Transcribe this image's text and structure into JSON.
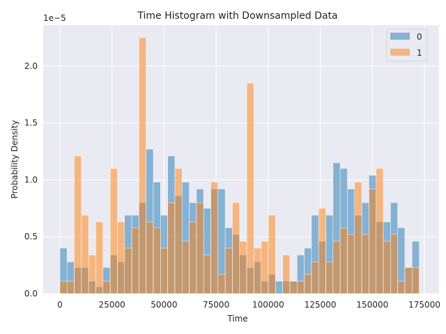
{
  "chart_data": {
    "type": "histogram",
    "title": "Time Histogram with Downsampled Data",
    "xlabel": "Time",
    "ylabel": "Probability Density",
    "y_offset_text": "1e−5",
    "x_ticks": [
      0,
      25000,
      50000,
      75000,
      100000,
      125000,
      150000,
      175000
    ],
    "x_tick_labels": [
      "0",
      "25000",
      "50000",
      "75000",
      "100000",
      "125000",
      "150000",
      "175000"
    ],
    "y_ticks": [
      0.0,
      0.5,
      1.0,
      1.5,
      2.0
    ],
    "y_tick_labels": [
      "0.0",
      "0.5",
      "1.0",
      "1.5",
      "2.0"
    ],
    "xlim": [
      -8000,
      182000
    ],
    "ylim": [
      0,
      2.36
    ],
    "bin_start": 0,
    "bin_width": 3450,
    "grid": true,
    "legend_position": "top-right",
    "series": [
      {
        "name": "0",
        "color": "#1f77b4",
        "values": [
          0.4,
          0.28,
          0.23,
          0.23,
          0.11,
          0.06,
          0.23,
          0.34,
          0.28,
          0.69,
          0.69,
          0.8,
          1.27,
          0.98,
          0.69,
          1.21,
          0.86,
          0.98,
          0.8,
          0.92,
          0.75,
          0.92,
          0.92,
          0.58,
          0.52,
          0.34,
          0.23,
          0.28,
          0.11,
          0.17,
          0.11,
          0.11,
          0.11,
          0.34,
          0.4,
          0.69,
          0.46,
          0.69,
          1.15,
          1.1,
          0.92,
          0.69,
          0.8,
          1.04,
          0.63,
          0.63,
          0.8,
          0.58,
          0.23,
          0.46
        ]
      },
      {
        "name": "1",
        "color": "#ff7f0e",
        "values": [
          0.11,
          0.11,
          1.21,
          0.69,
          0.34,
          0.63,
          0.11,
          1.1,
          0.63,
          0.4,
          0.58,
          2.25,
          0.63,
          0.58,
          0.4,
          0.8,
          1.1,
          0.46,
          0.63,
          0.8,
          0.34,
          0.98,
          0.17,
          0.4,
          0.8,
          0.46,
          1.85,
          0.4,
          0.46,
          0.69,
          0.0,
          0.34,
          0.11,
          0.11,
          0.17,
          0.28,
          0.75,
          0.28,
          0.46,
          0.58,
          0.52,
          0.98,
          0.52,
          0.92,
          1.1,
          0.46,
          0.52,
          0.11,
          0.23,
          0.23
        ]
      }
    ]
  }
}
